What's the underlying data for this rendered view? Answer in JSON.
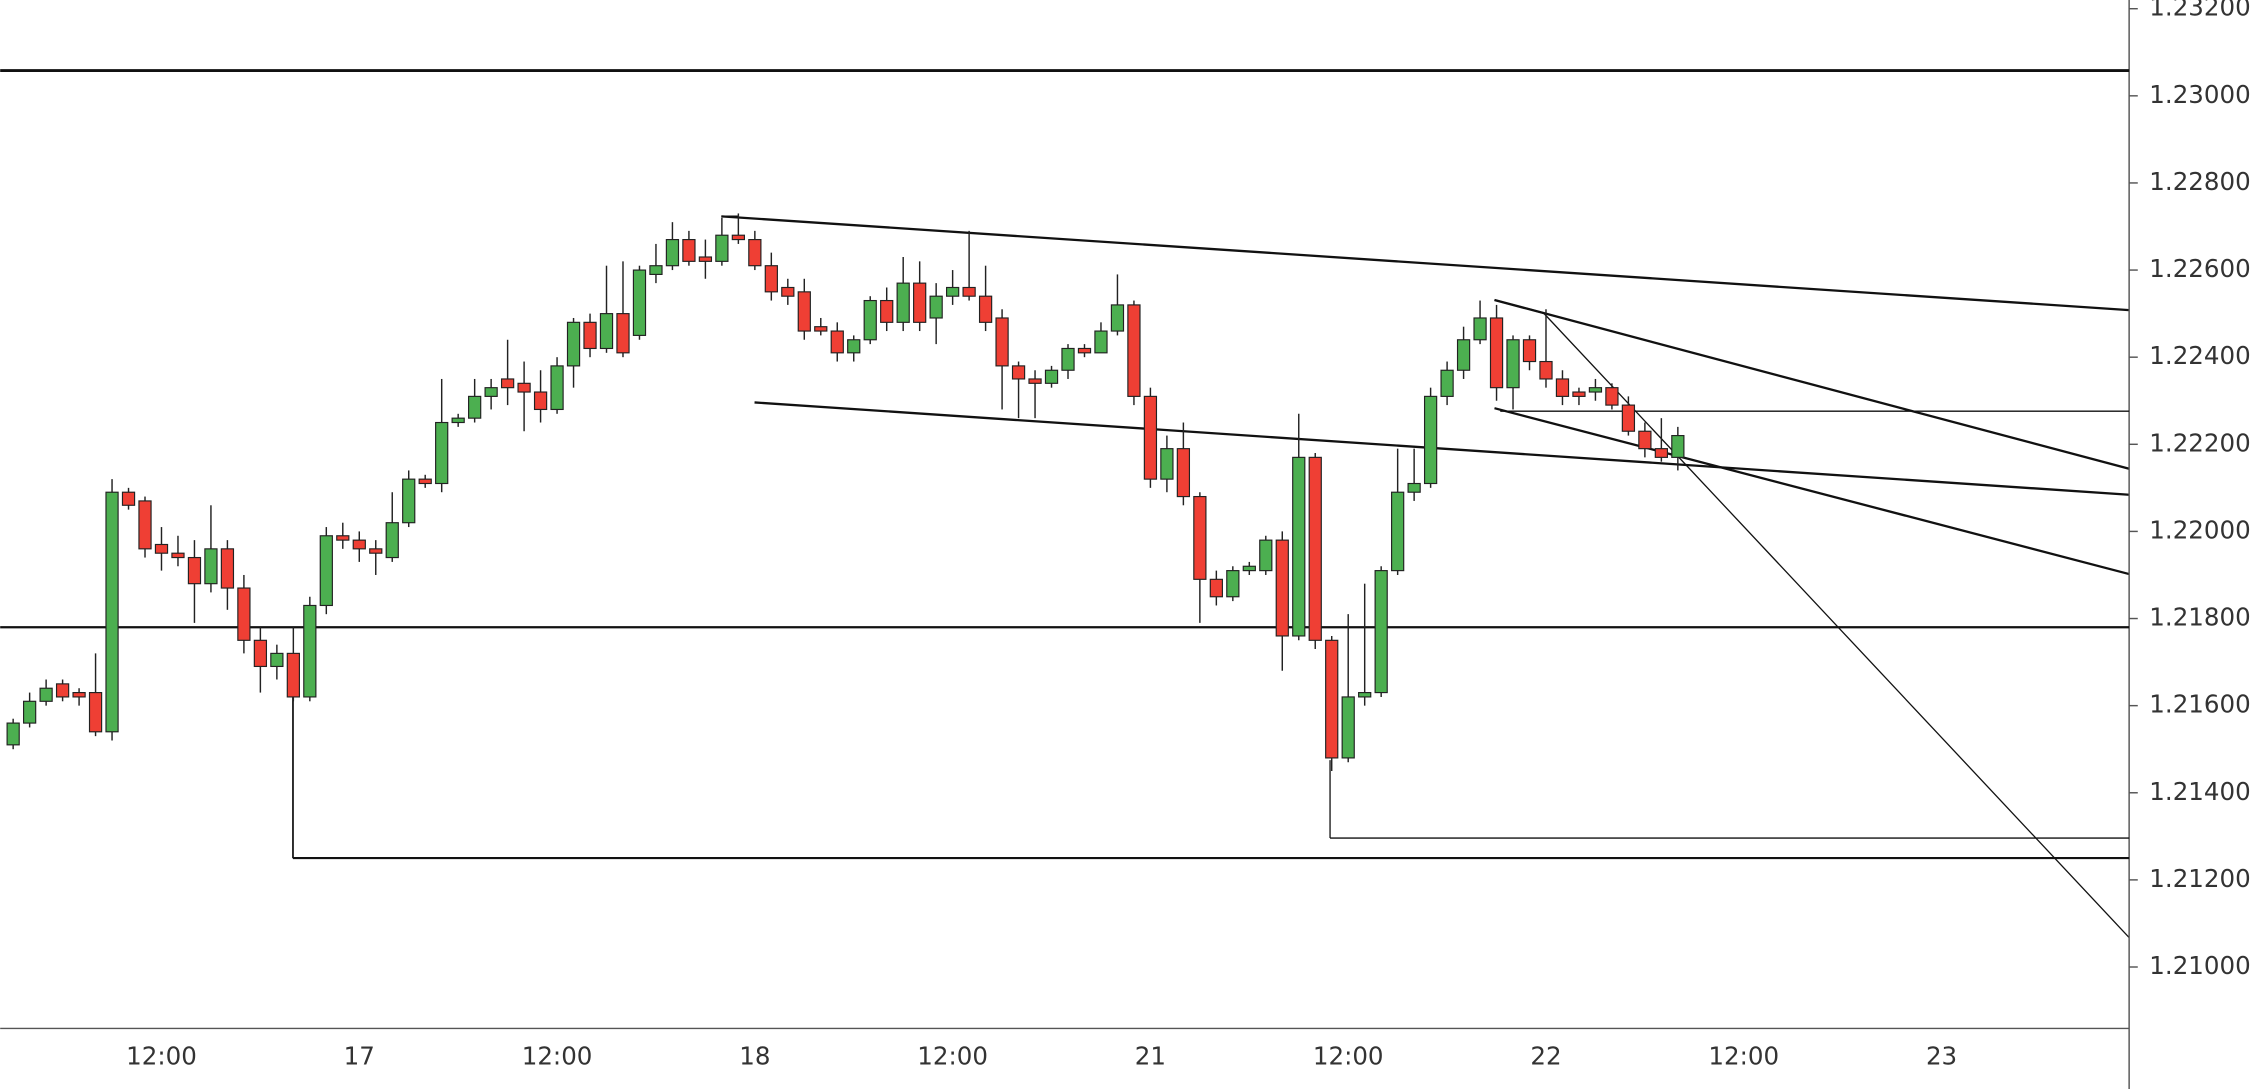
{
  "chart_data": {
    "type": "candlestick",
    "categories": [
      null,
      null,
      null,
      null,
      null,
      null,
      null,
      null,
      null,
      "12:00",
      null,
      null,
      null,
      null,
      null,
      null,
      null,
      null,
      null,
      null,
      null,
      "17",
      null,
      null,
      null,
      null,
      null,
      null,
      null,
      null,
      null,
      null,
      null,
      "12:00",
      null,
      null,
      null,
      null,
      null,
      null,
      null,
      null,
      null,
      null,
      null,
      "18",
      null,
      null,
      null,
      null,
      null,
      null,
      null,
      null,
      null,
      null,
      null,
      "12:00",
      null,
      null,
      null,
      null,
      null,
      null,
      null,
      null,
      null,
      null,
      null,
      "21",
      null,
      null,
      null,
      null,
      null,
      null,
      null,
      null,
      null,
      null,
      null,
      "12:00",
      null,
      null,
      null,
      null,
      null,
      null,
      null,
      null,
      null,
      null,
      null,
      "22",
      null,
      null,
      null,
      null,
      null,
      null,
      null,
      null,
      null,
      null,
      null,
      "12:00",
      null,
      null,
      null,
      null,
      null,
      null,
      null,
      null,
      null,
      null,
      null,
      "23",
      null,
      null,
      null,
      null,
      null,
      null,
      null,
      null,
      null,
      null,
      null
    ],
    "open": [
      1.2151,
      1.2156,
      1.2161,
      1.2165,
      1.2163,
      1.2163,
      1.2154,
      1.2209,
      1.2207,
      1.2197,
      1.2195,
      1.2194,
      1.2188,
      1.2196,
      1.2187,
      1.2175,
      1.2169,
      1.2172,
      1.2162,
      1.2183,
      1.2199,
      1.2198,
      1.2196,
      1.2194,
      1.2202,
      1.2212,
      1.2211,
      1.2225,
      1.2226,
      1.2231,
      1.2235,
      1.2234,
      1.2232,
      1.2228,
      1.2238,
      1.2248,
      1.2242,
      1.225,
      1.2245,
      1.2259,
      1.2261,
      1.2267,
      1.2263,
      1.2262,
      1.2268,
      1.2267,
      1.2261,
      1.2256,
      1.2255,
      1.2247,
      1.2246,
      1.2241,
      1.2244,
      1.2253,
      1.2248,
      1.2257,
      1.2249,
      1.2254,
      1.2256,
      1.2254,
      1.2249,
      1.2238,
      1.2235,
      1.2234,
      1.2237,
      1.2242,
      1.2241,
      1.2246,
      1.2252,
      1.2231,
      1.2212,
      1.2219,
      1.2208,
      1.2189,
      1.2185,
      1.2191,
      1.2191,
      1.2198,
      1.2176,
      1.2217,
      1.2175,
      1.2148,
      1.2162,
      1.2163,
      1.2191,
      1.2209,
      1.2211,
      1.2231,
      1.2237,
      1.2244,
      1.2249,
      1.2233,
      1.2244,
      1.2239,
      1.2235,
      1.2232,
      1.2232,
      1.2233,
      1.2229,
      1.2223,
      1.2219,
      1.2217,
      null,
      null,
      null,
      null,
      null,
      null,
      null,
      null,
      null,
      null,
      null,
      null,
      null,
      null,
      null,
      null,
      null,
      null,
      null,
      null,
      null,
      null,
      null,
      null,
      null,
      null,
      null
    ],
    "high": [
      1.2157,
      1.2163,
      1.2166,
      1.2166,
      1.2164,
      1.2172,
      1.2212,
      1.221,
      1.2208,
      1.2201,
      1.2199,
      1.2198,
      1.2206,
      1.2198,
      1.219,
      1.2178,
      1.2174,
      1.2178,
      1.2185,
      1.2201,
      1.2202,
      1.22,
      1.2198,
      1.2209,
      1.2214,
      1.2213,
      1.2235,
      1.2227,
      1.2235,
      1.2235,
      1.2244,
      1.2239,
      1.2237,
      1.224,
      1.2249,
      1.225,
      1.2261,
      1.2262,
      1.2261,
      1.2266,
      1.2271,
      1.2269,
      1.2267,
      1.2272,
      1.2273,
      1.2269,
      1.2264,
      1.2258,
      1.2258,
      1.2249,
      1.2248,
      1.2245,
      1.2254,
      1.2256,
      1.2263,
      1.2262,
      1.2257,
      1.226,
      1.2269,
      1.2261,
      1.2251,
      1.2239,
      1.2237,
      1.2238,
      1.2243,
      1.2243,
      1.2248,
      1.2259,
      1.2253,
      1.2233,
      1.2222,
      1.2225,
      1.2209,
      1.2191,
      1.2192,
      1.2193,
      1.2199,
      1.22,
      1.2227,
      1.2218,
      1.2176,
      1.2181,
      1.2188,
      1.2192,
      1.2219,
      1.2219,
      1.2233,
      1.2239,
      1.2247,
      1.2253,
      1.2252,
      1.2245,
      1.2245,
      1.2251,
      1.2237,
      1.2233,
      1.2235,
      1.2234,
      1.2231,
      1.2225,
      1.2226,
      1.2224,
      null,
      null,
      null,
      null,
      null,
      null,
      null,
      null,
      null,
      null,
      null,
      null,
      null,
      null,
      null,
      null,
      null,
      null,
      null,
      null,
      null,
      null,
      null,
      null,
      null,
      null,
      null
    ],
    "low": [
      1.215,
      1.2155,
      1.216,
      1.2161,
      1.216,
      1.2153,
      1.2152,
      1.2205,
      1.2194,
      1.2191,
      1.2192,
      1.2179,
      1.2186,
      1.2182,
      1.2172,
      1.2163,
      1.2166,
      1.2161,
      1.2161,
      1.2181,
      1.2196,
      1.2193,
      1.219,
      1.2193,
      1.2201,
      1.221,
      1.2209,
      1.2224,
      1.2225,
      1.2228,
      1.2229,
      1.2223,
      1.2225,
      1.2227,
      1.2233,
      1.224,
      1.2241,
      1.224,
      1.2244,
      1.2257,
      1.226,
      1.2261,
      1.2258,
      1.2261,
      1.2266,
      1.226,
      1.2253,
      1.2252,
      1.2244,
      1.2245,
      1.2239,
      1.2239,
      1.2243,
      1.2246,
      1.2246,
      1.2246,
      1.2243,
      1.2252,
      1.2253,
      1.2246,
      1.2228,
      1.2226,
      1.2226,
      1.2233,
      1.2235,
      1.224,
      1.2241,
      1.2245,
      1.2229,
      1.221,
      1.2209,
      1.2206,
      1.2179,
      1.2183,
      1.2184,
      1.219,
      1.219,
      1.2168,
      1.2175,
      1.2173,
      1.2145,
      1.2147,
      1.216,
      1.2162,
      1.219,
      1.2207,
      1.221,
      1.2229,
      1.2235,
      1.2243,
      1.223,
      1.2228,
      1.2237,
      1.2233,
      1.2229,
      1.2229,
      1.223,
      1.2228,
      1.2222,
      1.2217,
      1.2216,
      1.2214,
      null,
      null,
      null,
      null,
      null,
      null,
      null,
      null,
      null,
      null,
      null,
      null,
      null,
      null,
      null,
      null,
      null,
      null,
      null,
      null,
      null,
      null,
      null,
      null,
      null,
      null,
      null
    ],
    "close": [
      1.2156,
      1.2161,
      1.2164,
      1.2162,
      1.2162,
      1.2154,
      1.2209,
      1.2206,
      1.2196,
      1.2195,
      1.2194,
      1.2188,
      1.2196,
      1.2187,
      1.2175,
      1.2169,
      1.2172,
      1.2162,
      1.2183,
      1.2199,
      1.2198,
      1.2196,
      1.2195,
      1.2202,
      1.2212,
      1.2211,
      1.2225,
      1.2226,
      1.2231,
      1.2233,
      1.2233,
      1.2232,
      1.2228,
      1.2238,
      1.2248,
      1.2242,
      1.225,
      1.2241,
      1.226,
      1.2261,
      1.2267,
      1.2262,
      1.2262,
      1.2268,
      1.2267,
      1.2261,
      1.2255,
      1.2254,
      1.2246,
      1.2246,
      1.2241,
      1.2244,
      1.2253,
      1.2248,
      1.2257,
      1.2248,
      1.2254,
      1.2256,
      1.2254,
      1.2248,
      1.2238,
      1.2235,
      1.2234,
      1.2237,
      1.2242,
      1.2241,
      1.2246,
      1.2252,
      1.2231,
      1.2212,
      1.2219,
      1.2208,
      1.2189,
      1.2185,
      1.2191,
      1.2192,
      1.2198,
      1.2176,
      1.2217,
      1.2175,
      1.2148,
      1.2162,
      1.2163,
      1.2191,
      1.2209,
      1.2211,
      1.2231,
      1.2237,
      1.2244,
      1.2249,
      1.2233,
      1.2244,
      1.2239,
      1.2235,
      1.2231,
      1.2231,
      1.2233,
      1.2229,
      1.2223,
      1.2219,
      1.2217,
      1.2222,
      null,
      null,
      null,
      null,
      null,
      null,
      null,
      null,
      null,
      null,
      null,
      null,
      null,
      null,
      null,
      null,
      null,
      null,
      null,
      null,
      null,
      null,
      null,
      null,
      null,
      null,
      null
    ],
    "up_color": "#4caf50",
    "down_color": "#ef3f34",
    "ylim": [
      1.20859,
      1.2322
    ],
    "yticks": [
      {
        "value": 1.232,
        "label": "1.23200"
      },
      {
        "value": 1.23,
        "label": "1.23000"
      },
      {
        "value": 1.228,
        "label": "1.22800"
      },
      {
        "value": 1.226,
        "label": "1.22600"
      },
      {
        "value": 1.224,
        "label": "1.22400"
      },
      {
        "value": 1.222,
        "label": "1.22200"
      },
      {
        "value": 1.22,
        "label": "1.22000"
      },
      {
        "value": 1.218,
        "label": "1.21800"
      },
      {
        "value": 1.216,
        "label": "1.21600"
      },
      {
        "value": 1.214,
        "label": "1.21400"
      },
      {
        "value": 1.212,
        "label": "1.21200"
      },
      {
        "value": 1.21,
        "label": "1.21000"
      }
    ],
    "levels": [
      1.23058,
      1.2178,
      1.2125,
      1.21296,
      1.22276
    ]
  }
}
